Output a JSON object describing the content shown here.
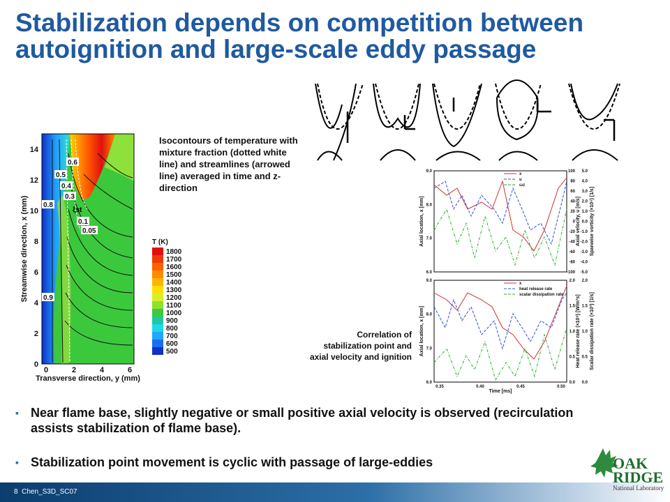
{
  "title": "Stabilization depends on competition between autoignition and large-scale eddy passage",
  "contour_figure": {
    "x_label": "Transverse direction, y (mm)",
    "y_label": "Streamwise direction, x (mm)",
    "x_ticks": [
      "0",
      "2",
      "4",
      "6"
    ],
    "y_ticks": [
      "0",
      "2",
      "4",
      "6",
      "8",
      "10",
      "12",
      "14"
    ],
    "contour_labels": [
      "0.6",
      "0.5",
      "0.4",
      "0.3",
      "0.8",
      "0.1",
      "0.05",
      "0.9"
    ],
    "xi_label": "ξst",
    "colorbar_title": "T (K)",
    "colorbar_labels": [
      "1800",
      "1700",
      "1600",
      "1500",
      "1400",
      "1300",
      "1200",
      "1100",
      "1000",
      "900",
      "800",
      "700",
      "600",
      "500"
    ]
  },
  "contour_caption": "Isocontours of temperature with mixture fraction (dotted white line) and streamlines (arrowed line) averaged in time and z-direction",
  "plots_caption": "Correlation of stabilization point and axial velocity and ignition",
  "top_plot": {
    "y_label": "Axial location, x [mm]",
    "y_ticks": [
      "9.0",
      "8.0",
      "7.0",
      "6.0"
    ],
    "y2_label": "Axial velocity, u [m/s]",
    "y2_ticks": [
      "100",
      "80",
      "60",
      "40",
      "20",
      "0",
      "-20",
      "-40",
      "-60",
      "-80",
      "-100"
    ],
    "y3_label": "Spanwise vorticity (×10⁵) [1/s]",
    "y3_ticks": [
      "5.0",
      "4.0",
      "3.0",
      "2.0",
      "1.0",
      "0.0",
      "-1.0",
      "-2.0",
      "-3.0",
      "-4.0",
      "-5.0"
    ],
    "legend": [
      "x",
      "u",
      "ωz"
    ]
  },
  "bottom_plot": {
    "y_label": "Axial location, x [mm]",
    "y_ticks": [
      "9.0",
      "8.0",
      "7.0",
      "6.0"
    ],
    "x_label": "Time [ms]",
    "x_ticks": [
      "0.35",
      "0.40",
      "0.45",
      "0.50"
    ],
    "y2_label": "Heat release rate (×10⁹) [W/m³s]",
    "y2_ticks": [
      "2.0",
      "1.5",
      "1.0",
      "0.5",
      "0.0"
    ],
    "y3_label": "Scalar dissipation rate (×10³) [1/s]",
    "y3_ticks": [
      "2.0",
      "1.5",
      "1.0",
      "0.5",
      "0.0"
    ],
    "legend": [
      "x",
      "heat release rate",
      "scalar dissipation rate"
    ]
  },
  "bullets": [
    "Near flame base, slightly negative or small positive axial velocity is observed (recirculation assists stabilization of flame base).",
    "Stabilization point movement is cyclic with passage of large-eddies"
  ],
  "footer": {
    "page": "8",
    "label": "Chen_S3D_SC07"
  },
  "logo": {
    "line1": "OAK",
    "line2": "RIDGE",
    "line3": "National Laboratory"
  }
}
